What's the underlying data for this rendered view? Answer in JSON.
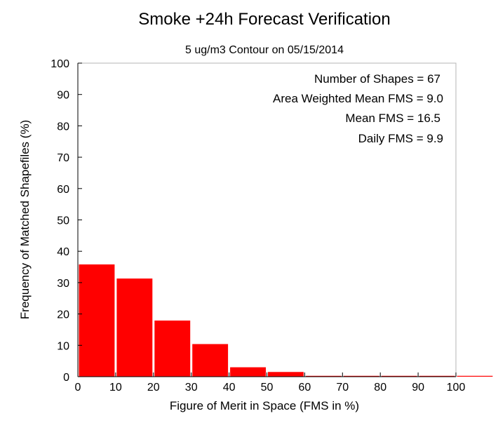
{
  "chart_data": {
    "type": "bar",
    "title": "Smoke +24h Forecast Verification",
    "subtitle": "5 ug/m3 Contour on 05/15/2014",
    "xlabel": "Figure of Merit in Space (FMS in %)",
    "ylabel": "Frequency of Matched Shapefiles (%)",
    "xlim": [
      0,
      100
    ],
    "ylim": [
      0,
      100
    ],
    "xticks": [
      "0",
      "10",
      "20",
      "30",
      "40",
      "50",
      "60",
      "70",
      "80",
      "90",
      "100"
    ],
    "yticks": [
      "0",
      "10",
      "20",
      "30",
      "40",
      "50",
      "60",
      "70",
      "80",
      "90",
      "100"
    ],
    "bins": [
      {
        "start": 0,
        "end": 10,
        "value": 35.8
      },
      {
        "start": 10,
        "end": 20,
        "value": 31.3
      },
      {
        "start": 20,
        "end": 30,
        "value": 17.9
      },
      {
        "start": 30,
        "end": 40,
        "value": 10.4
      },
      {
        "start": 40,
        "end": 50,
        "value": 3.0
      },
      {
        "start": 50,
        "end": 60,
        "value": 1.5
      },
      {
        "start": 60,
        "end": 70,
        "value": 0
      },
      {
        "start": 70,
        "end": 80,
        "value": 0
      },
      {
        "start": 80,
        "end": 90,
        "value": 0
      },
      {
        "start": 90,
        "end": 100,
        "value": 0
      },
      {
        "start": 100,
        "end": 110,
        "value": 0
      }
    ],
    "bar_color": "#ff0000",
    "grid": false,
    "annotations": [
      "Number of Shapes = 67",
      "Area Weighted Mean FMS = 9.0",
      "Mean FMS = 16.5",
      "Daily FMS = 9.9"
    ]
  }
}
